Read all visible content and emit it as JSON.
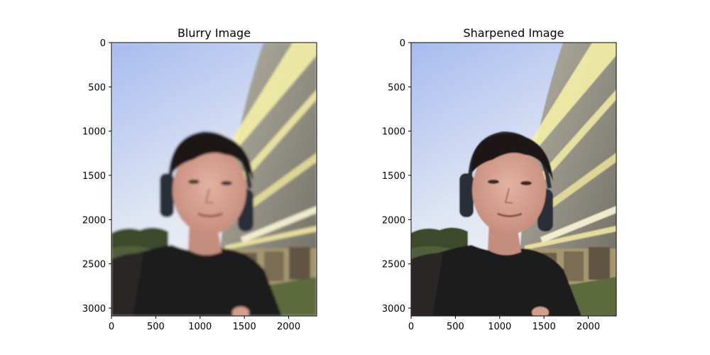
{
  "panels": [
    {
      "title": "Blurry Image",
      "variant": "blurry",
      "x_ticks": [
        "0",
        "500",
        "1000",
        "1500",
        "2000"
      ],
      "y_ticks": [
        "0",
        "500",
        "1000",
        "1500",
        "2000",
        "2500",
        "3000"
      ]
    },
    {
      "title": "Sharpened Image",
      "variant": "sharpened",
      "x_ticks": [
        "0",
        "500",
        "1000",
        "1500",
        "2000"
      ],
      "y_ticks": [
        "0",
        "500",
        "1000",
        "1500",
        "2000",
        "2500",
        "3000"
      ]
    }
  ],
  "colors": {
    "sky_top": "#a9bef0",
    "sky_bottom": "#eef1f6",
    "building": "#8f8a7d",
    "stripe": "#f2eda0",
    "trees": "#3d4a2c",
    "shirt": "#1d1b1c",
    "skin": "#d8a393",
    "hair": "#1a1717",
    "headphones": "#2b2f38"
  }
}
